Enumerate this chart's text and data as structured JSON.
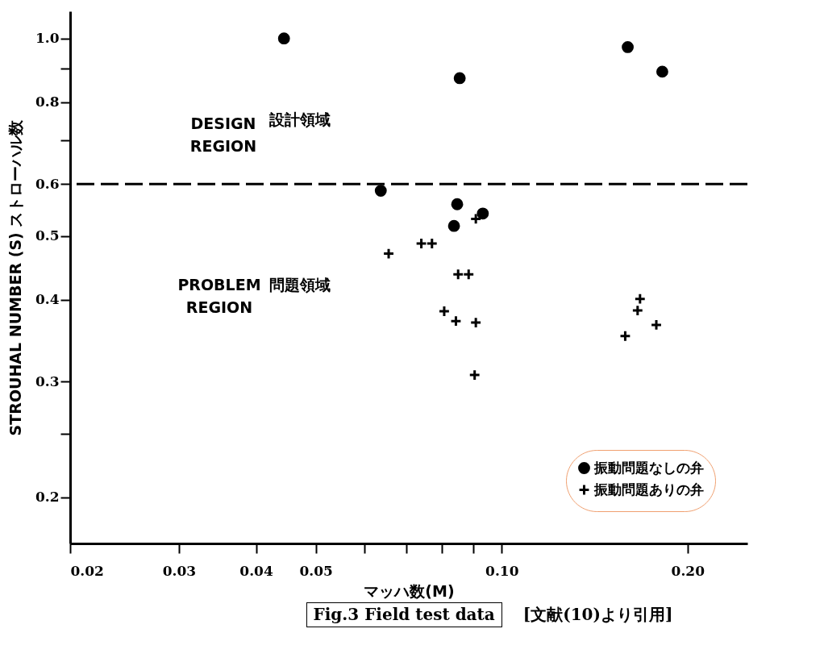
{
  "chart_data": {
    "type": "scatter",
    "xlabel": "マッハ数(M)",
    "ylabel": "STROUHAL NUMBER (S)  ストローハル数",
    "log": "xy",
    "grid": false,
    "legend": "bottom right",
    "xlim": [
      0.02,
      0.25
    ],
    "xticks": [
      0.02,
      0.03,
      0.04,
      0.05,
      {
        "value": 0.06,
        "label": null
      },
      {
        "value": 0.07,
        "label": null
      },
      {
        "value": 0.08,
        "label": null
      },
      {
        "value": 0.09,
        "label": null
      },
      {
        "value": 0.1,
        "label": "0.10"
      },
      {
        "value": 0.2,
        "label": "0.20"
      }
    ],
    "ylim": [
      0.17,
      1.1
    ],
    "yticks": [
      0.2,
      {
        "value": 0.25,
        "label": null
      },
      0.3,
      0.4,
      0.5,
      0.6,
      {
        "value": 0.7,
        "label": null
      },
      0.8,
      {
        "value": 0.9,
        "label": null
      },
      {
        "value": 1,
        "label": "1.0"
      }
    ],
    "series": [
      {
        "name": "振動問題なしの弁",
        "color": "#000000",
        "marker": "circle",
        "x": [
          0.0444,
          0.0855,
          0.16,
          0.182,
          0.0637,
          0.0847,
          0.0837,
          0.0932
        ],
        "values": [
          1.0,
          0.87,
          0.97,
          0.89,
          0.586,
          0.559,
          0.518,
          0.541
        ]
      },
      {
        "name": "振動問題ありの弁",
        "color": "#000000",
        "marker": "cross",
        "x": [
          0.0656,
          0.0741,
          0.0771,
          0.085,
          0.0884,
          0.0807,
          0.0843,
          0.0908,
          0.0904,
          0.0908,
          0.1675,
          0.166,
          0.1585,
          0.178
        ],
        "values": [
          0.47,
          0.487,
          0.487,
          0.437,
          0.437,
          0.384,
          0.371,
          0.369,
          0.307,
          0.531,
          0.401,
          0.385,
          0.352,
          0.366
        ]
      }
    ],
    "ref_lines": [
      {
        "axis": "y",
        "value": 0.6,
        "line_style": "dashed",
        "color": "#000000"
      }
    ],
    "annotations": [
      "DESIGN\nREGION",
      "設計領域",
      "PROBLEM\nREGION",
      "問題領域",
      "Fig.3 Field test data",
      "[文献(10)より引用]"
    ]
  }
}
